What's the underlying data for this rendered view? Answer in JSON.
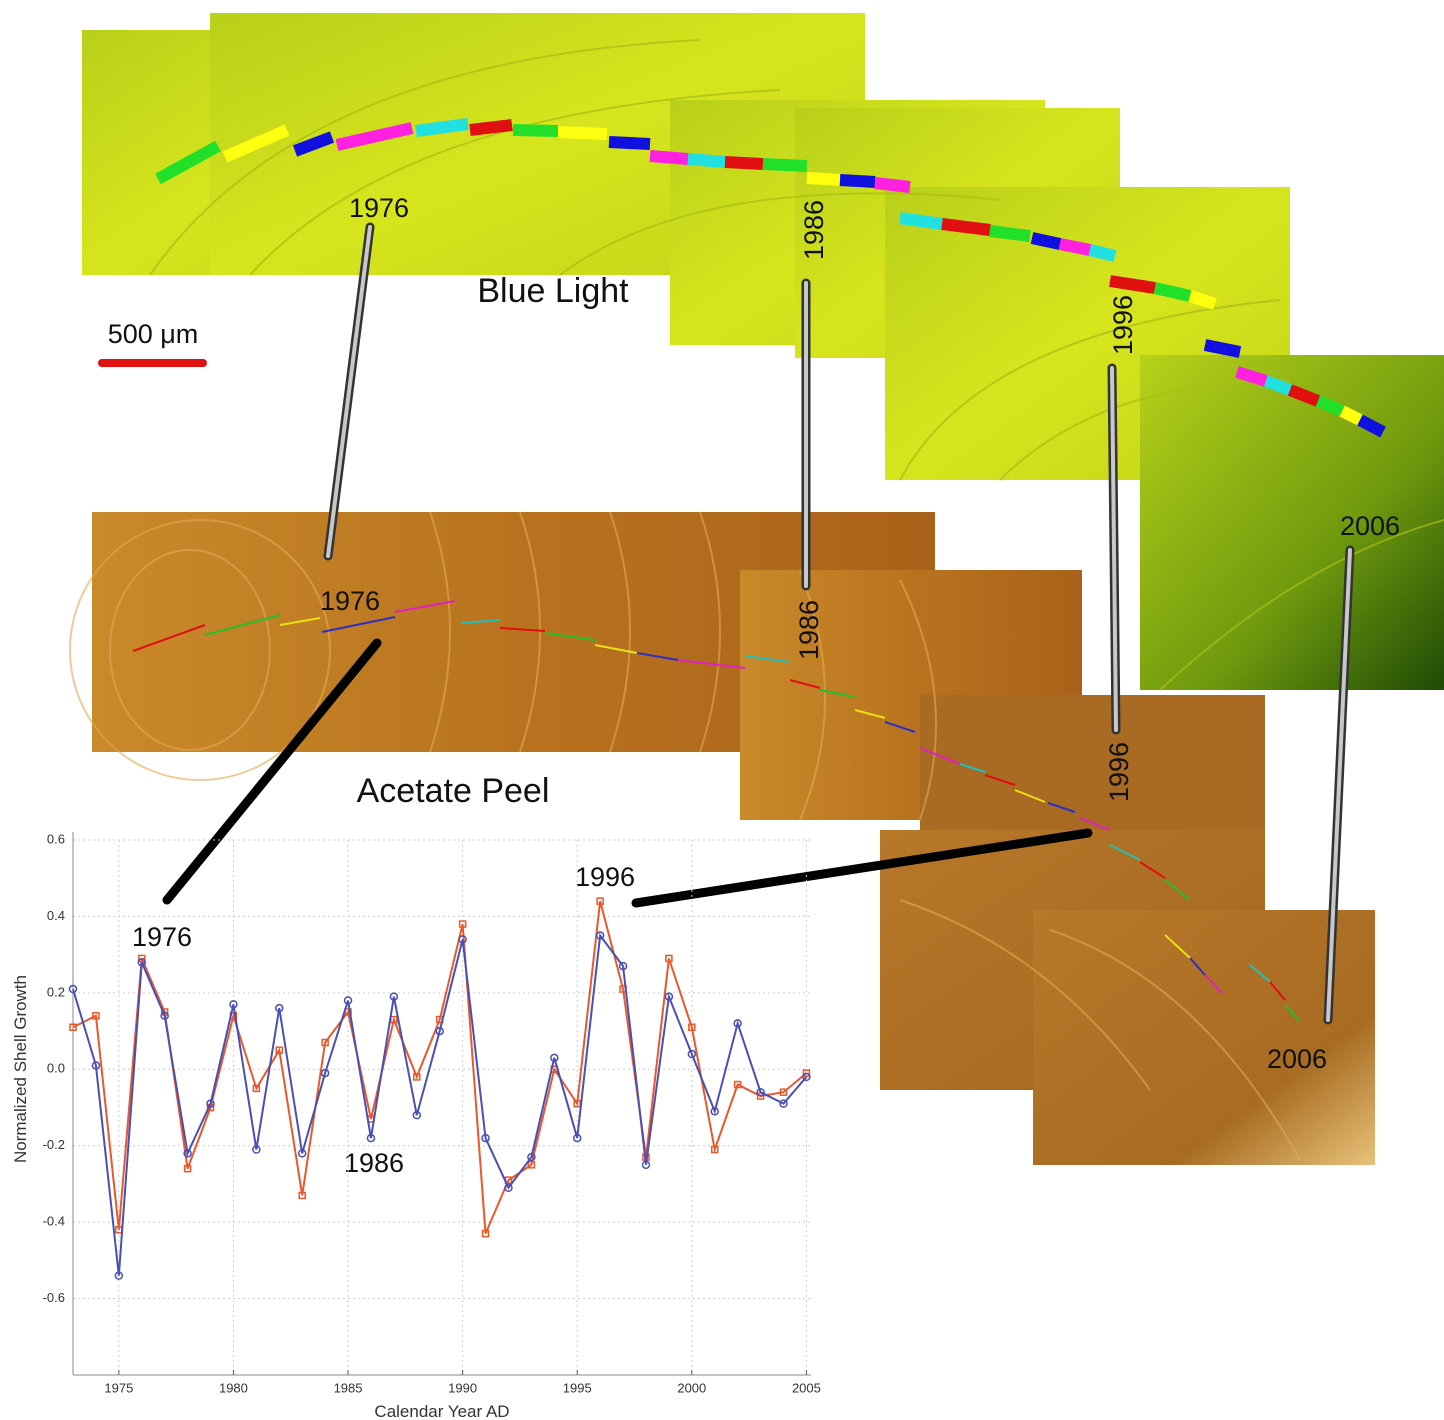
{
  "figure": {
    "blue_light_label": "Blue Light",
    "acetate_peel_label": "Acetate Peel",
    "scale_label": "500 μm",
    "blue_years": [
      "1976",
      "1986",
      "1996",
      "2006"
    ],
    "peel_years": [
      "1976",
      "1986",
      "1996",
      "2006"
    ]
  },
  "chart_data": {
    "type": "line",
    "xlabel": "Calendar Year AD",
    "ylabel": "Normalized Shell Growth",
    "annotations": [
      "1976",
      "1996",
      "1986"
    ],
    "x": [
      1973,
      1974,
      1975,
      1976,
      1977,
      1978,
      1979,
      1980,
      1981,
      1982,
      1983,
      1984,
      1985,
      1986,
      1987,
      1988,
      1989,
      1990,
      1991,
      1992,
      1993,
      1994,
      1995,
      1996,
      1997,
      1998,
      1999,
      2000,
      2001,
      2002,
      2003,
      2004,
      2005
    ],
    "series": [
      {
        "color": "#e8582a",
        "marker": "square",
        "values": [
          0.11,
          0.14,
          -0.42,
          0.29,
          0.15,
          -0.26,
          -0.1,
          0.14,
          -0.05,
          0.05,
          -0.33,
          0.07,
          0.15,
          -0.13,
          0.13,
          -0.02,
          0.13,
          0.38,
          -0.43,
          -0.29,
          -0.25,
          0.0,
          -0.09,
          0.44,
          0.21,
          -0.23,
          0.29,
          0.11,
          -0.21,
          -0.04,
          -0.07,
          -0.06,
          -0.01
        ]
      },
      {
        "color": "#4a4fb5",
        "marker": "circle",
        "values": [
          0.21,
          0.01,
          -0.54,
          0.28,
          0.14,
          -0.22,
          -0.09,
          0.17,
          -0.21,
          0.16,
          -0.22,
          -0.01,
          0.18,
          -0.18,
          0.19,
          -0.12,
          0.1,
          0.34,
          -0.18,
          -0.31,
          -0.23,
          0.03,
          -0.18,
          0.35,
          0.27,
          -0.25,
          0.19,
          0.04,
          -0.11,
          0.12,
          -0.06,
          -0.09,
          -0.02
        ]
      }
    ],
    "xlim": [
      1973,
      2005.2
    ],
    "ylim": [
      -0.8,
      0.6
    ],
    "xticks": [
      1975,
      1980,
      1985,
      1990,
      1995,
      2000,
      2005
    ],
    "yticks": [
      0.6,
      0.4,
      0.2,
      {
        "value": 0,
        "label": "0.0"
      },
      -0.2,
      -0.4,
      -0.6
    ],
    "grid": true
  }
}
